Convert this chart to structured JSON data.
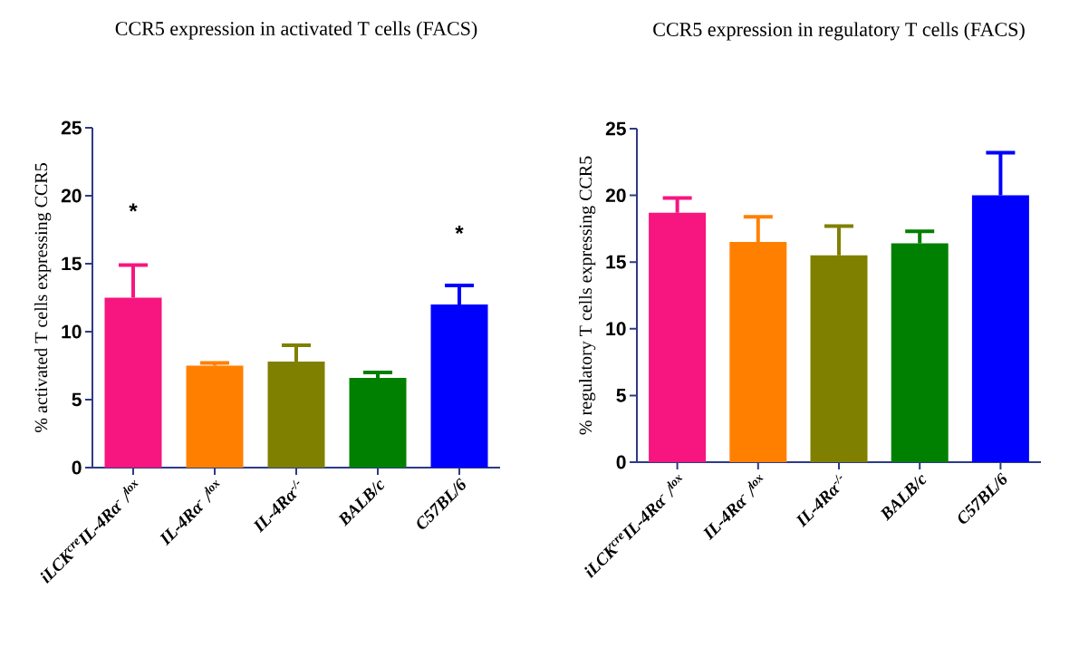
{
  "chart_data": [
    {
      "type": "bar",
      "title": "CCR5 expression in activated T cells (FACS)",
      "ylabel": "% activated T cells expressing CCR5",
      "categories": [
        "iLCK$^{cre}$IL-4Rα$^{-}$ /$^{lox}$",
        "IL-4Rα$^{-}$ /$^{lox}$",
        "IL-4Rα$^{-/-}$",
        "BALB/c",
        "C57BL/6"
      ],
      "values": [
        12.5,
        7.5,
        7.8,
        6.6,
        12.0
      ],
      "errors": [
        [
          12.5,
          14.9
        ],
        [
          7.5,
          7.7
        ],
        [
          7.8,
          9.0
        ],
        [
          6.6,
          7.0
        ],
        [
          12.0,
          13.4
        ]
      ],
      "colors": [
        "#f7157f",
        "#ff8000",
        "#808000",
        "#008000",
        "#0000ff"
      ],
      "ylim": [
        0,
        25
      ],
      "yticks": [
        0,
        5,
        10,
        15,
        20,
        25
      ],
      "annotations": [
        "*",
        "*"
      ]
    },
    {
      "type": "bar",
      "title": "CCR5 expression in regulatory T cells (FACS)",
      "ylabel": "% regulatory T cells expressing CCR5",
      "categories": [
        "iLCK$^{cre}$IL-4Rα$^{-}$ /$^{lox}$",
        "IL-4Rα$^{-}$ /$^{lox}$",
        "IL-4Rα$^{-/-}$",
        "BALB/c",
        "C57BL/6"
      ],
      "values": [
        18.7,
        16.5,
        15.5,
        16.4,
        20.0
      ],
      "errors": [
        [
          18.7,
          19.8
        ],
        [
          16.5,
          18.4
        ],
        [
          15.5,
          17.7
        ],
        [
          16.4,
          17.3
        ],
        [
          20.0,
          23.2
        ]
      ],
      "colors": [
        "#f7157f",
        "#ff8000",
        "#808000",
        "#008000",
        "#0000ff"
      ],
      "ylim": [
        0,
        25
      ],
      "yticks": [
        0,
        5,
        10,
        15,
        20,
        25
      ]
    }
  ]
}
